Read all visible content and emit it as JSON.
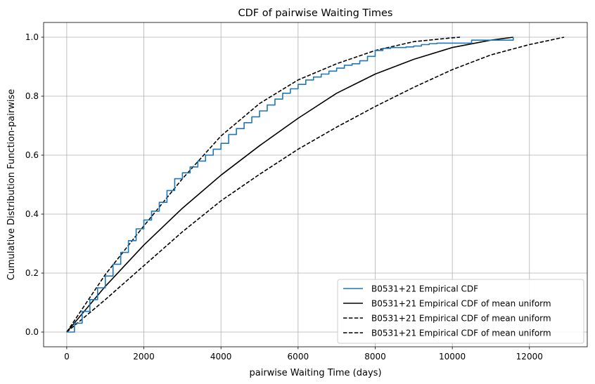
{
  "chart_data": {
    "type": "line",
    "title": "CDF of pairwise Waiting Times",
    "xlabel": "pairwise Waiting Time (days)",
    "ylabel": "Cumulative Distribution Function-pairwise",
    "xlim": [
      -600,
      13500
    ],
    "ylim": [
      -0.05,
      1.05
    ],
    "xticks": [
      0,
      2000,
      4000,
      6000,
      8000,
      10000,
      12000
    ],
    "xtick_labels": [
      "0",
      "2000",
      "4000",
      "6000",
      "8000",
      "10000",
      "12000"
    ],
    "yticks": [
      0.0,
      0.2,
      0.4,
      0.6,
      0.8,
      1.0
    ],
    "ytick_labels": [
      "0.0",
      "0.2",
      "0.4",
      "0.6",
      "0.8",
      "1.0"
    ],
    "grid": true,
    "legend_position": "lower-right",
    "series": [
      {
        "name": "B0531+21 Empirical CDF",
        "color": "#1f77b4",
        "style": "solid",
        "x": [
          0,
          200,
          400,
          600,
          800,
          1000,
          1200,
          1400,
          1600,
          1800,
          2000,
          2200,
          2400,
          2600,
          2800,
          3000,
          3200,
          3400,
          3600,
          3800,
          4000,
          4200,
          4400,
          4600,
          4800,
          5000,
          5200,
          5400,
          5600,
          5800,
          6000,
          6200,
          6400,
          6600,
          6800,
          7000,
          7200,
          7400,
          7600,
          7800,
          8000,
          8200,
          8400,
          8600,
          8800,
          9000,
          9200,
          9400,
          9600,
          9800,
          10000,
          10500,
          11000,
          11580
        ],
        "y": [
          0.0,
          0.03,
          0.07,
          0.11,
          0.15,
          0.19,
          0.23,
          0.27,
          0.31,
          0.35,
          0.38,
          0.41,
          0.44,
          0.48,
          0.52,
          0.54,
          0.56,
          0.58,
          0.6,
          0.62,
          0.64,
          0.67,
          0.69,
          0.71,
          0.73,
          0.75,
          0.77,
          0.79,
          0.81,
          0.825,
          0.84,
          0.855,
          0.865,
          0.875,
          0.885,
          0.895,
          0.905,
          0.91,
          0.92,
          0.935,
          0.955,
          0.962,
          0.965,
          0.965,
          0.967,
          0.97,
          0.975,
          0.978,
          0.98,
          0.98,
          0.98,
          0.99,
          0.99,
          1.0
        ]
      },
      {
        "name": "B0531+21 Empirical CDF of mean uniform",
        "color": "#000000",
        "style": "solid",
        "x": [
          0,
          1000,
          2000,
          3000,
          4000,
          5000,
          6000,
          7000,
          8000,
          9000,
          10000,
          11000,
          11580
        ],
        "y": [
          0.0,
          0.155,
          0.295,
          0.42,
          0.532,
          0.632,
          0.725,
          0.81,
          0.875,
          0.925,
          0.965,
          0.99,
          1.0
        ]
      },
      {
        "name": "B0531+21 Empirical CDF of mean uniform",
        "color": "#000000",
        "style": "dashed",
        "x": [
          0,
          1000,
          2000,
          3000,
          4000,
          5000,
          6000,
          7000,
          8000,
          9000,
          10000,
          10200
        ],
        "y": [
          0.0,
          0.195,
          0.36,
          0.52,
          0.665,
          0.775,
          0.855,
          0.91,
          0.955,
          0.985,
          0.998,
          1.0
        ]
      },
      {
        "name": "B0531+21 Empirical CDF of mean uniform",
        "color": "#000000",
        "style": "dashed",
        "x": [
          0,
          1000,
          2000,
          3000,
          4000,
          5000,
          6000,
          7000,
          8000,
          9000,
          10000,
          11000,
          12000,
          12900
        ],
        "y": [
          0.0,
          0.11,
          0.225,
          0.34,
          0.445,
          0.535,
          0.62,
          0.695,
          0.765,
          0.83,
          0.89,
          0.94,
          0.975,
          1.0
        ]
      }
    ]
  }
}
